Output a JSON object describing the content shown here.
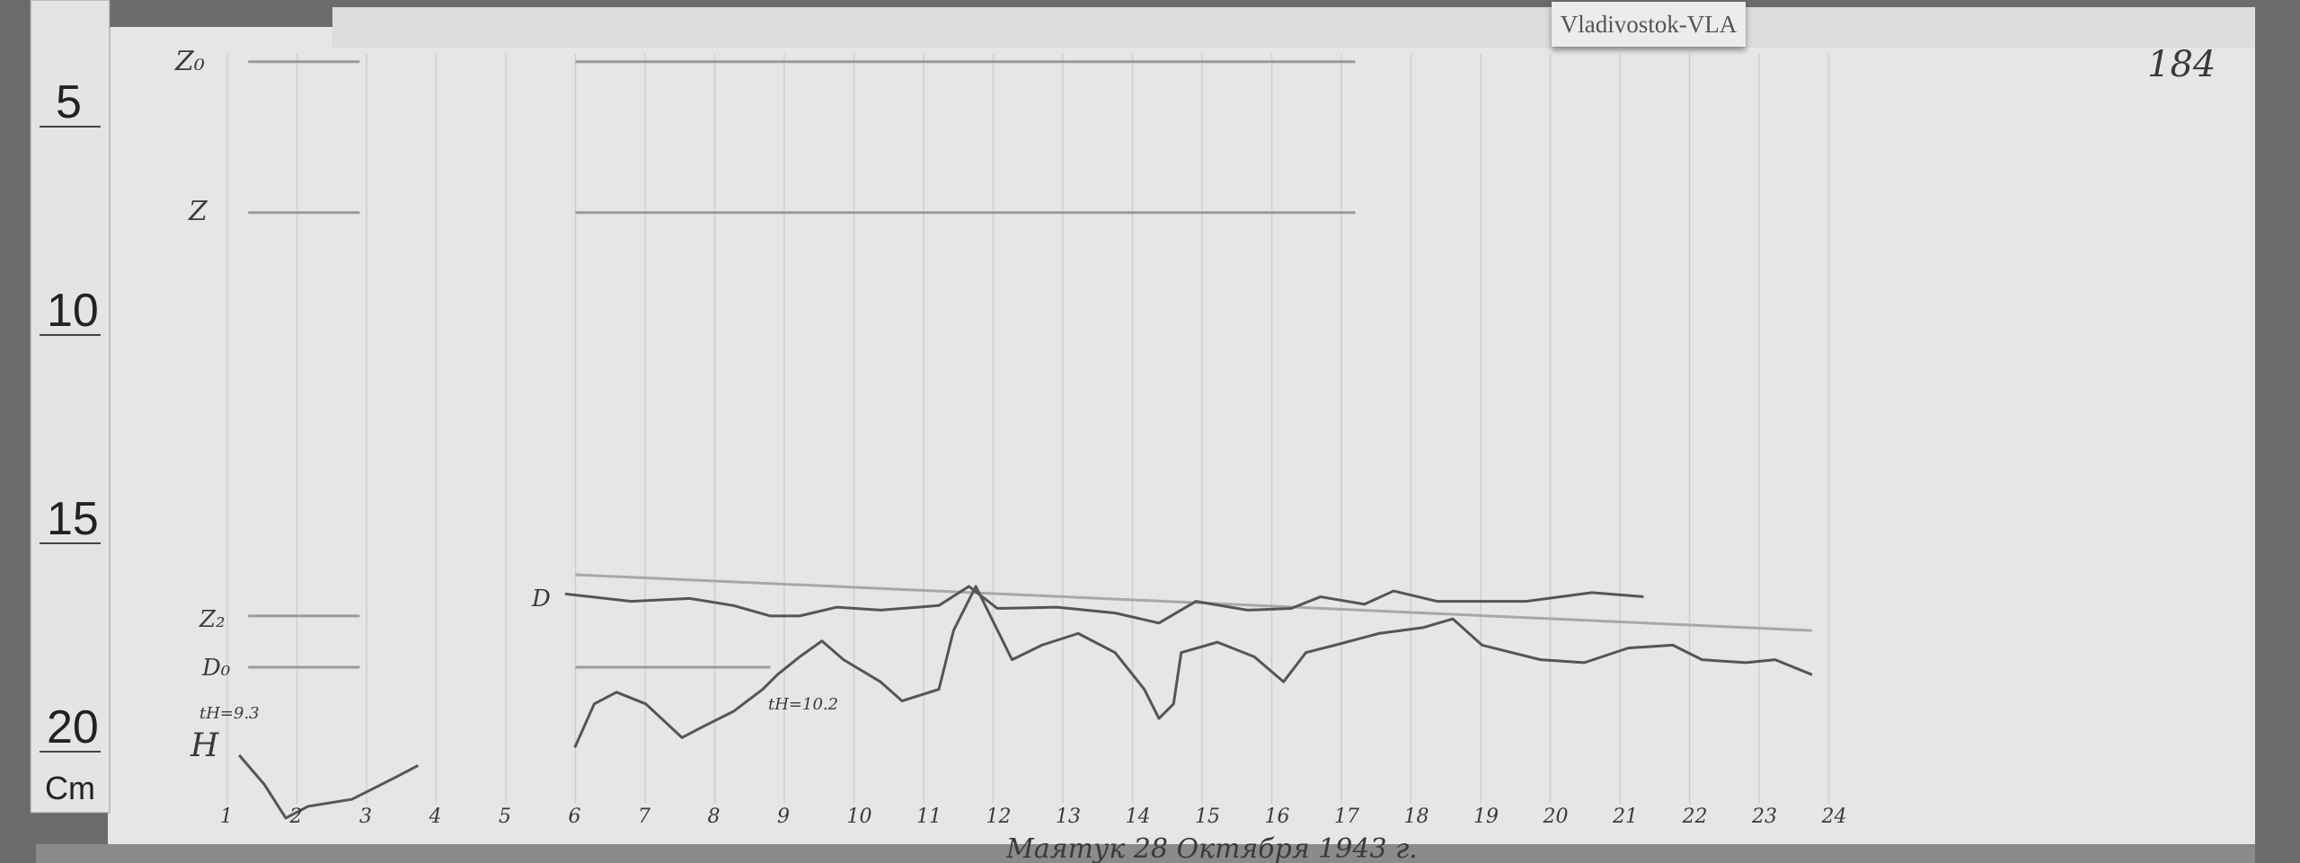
{
  "station_label": "Vladivostok-VLA",
  "sheet_number": "184",
  "ruler": {
    "ticks": [
      "5",
      "10",
      "15",
      "20"
    ],
    "unit": "Cm"
  },
  "signature_line": "Маятук 28 Октября 1943 г.",
  "trace_labels": {
    "z0": "Z₀",
    "z": "Z",
    "z2": "Z₂",
    "d0": "D₀",
    "th_left": "tH=9.3",
    "h": "H",
    "d": "D",
    "th_right": "tH=10.2"
  },
  "colors": {
    "paper": "#e8e8e8",
    "trace": "#555555",
    "baseline": "#9a9a9a"
  },
  "chart_data": {
    "type": "line",
    "x_unit": "hour",
    "y_unit": "cm (ruler)",
    "x_ticks": [
      "1",
      "2",
      "3",
      "4",
      "5",
      "6",
      "7",
      "8",
      "9",
      "10",
      "11",
      "12",
      "13",
      "14",
      "15",
      "16",
      "17",
      "18",
      "19",
      "20",
      "21",
      "22",
      "23",
      "24"
    ],
    "xlim": [
      1,
      24
    ],
    "ylim": [
      0,
      22.5
    ],
    "y_inverted": true,
    "grid": true,
    "series": [
      {
        "label": "D",
        "points": [
          [
            5.85,
            16.86
          ],
          [
            6.8,
            17.04
          ],
          [
            7.64,
            16.97
          ],
          [
            8.27,
            17.14
          ],
          [
            8.8,
            17.39
          ],
          [
            9.22,
            17.39
          ],
          [
            9.75,
            17.18
          ],
          [
            10.38,
            17.25
          ],
          [
            11.22,
            17.14
          ],
          [
            11.65,
            16.68
          ],
          [
            12.06,
            17.21
          ],
          [
            12.91,
            17.18
          ],
          [
            13.75,
            17.32
          ],
          [
            14.38,
            17.56
          ],
          [
            14.91,
            17.04
          ],
          [
            15.65,
            17.25
          ],
          [
            16.28,
            17.21
          ],
          [
            16.7,
            16.93
          ],
          [
            17.33,
            17.11
          ],
          [
            17.75,
            16.79
          ],
          [
            18.38,
            17.04
          ],
          [
            19.65,
            17.04
          ],
          [
            20.6,
            16.83
          ],
          [
            21.34,
            16.93
          ]
        ]
      },
      {
        "label": "H",
        "points": [
          [
            5.99,
            20.55
          ],
          [
            6.27,
            19.5
          ],
          [
            6.59,
            19.22
          ],
          [
            7.01,
            19.5
          ],
          [
            7.53,
            20.31
          ],
          [
            7.85,
            20.03
          ],
          [
            8.27,
            19.68
          ],
          [
            8.69,
            19.15
          ],
          [
            8.9,
            18.8
          ],
          [
            9.22,
            18.37
          ],
          [
            9.54,
            17.99
          ],
          [
            9.85,
            18.44
          ],
          [
            10.38,
            18.97
          ],
          [
            10.69,
            19.43
          ],
          [
            11.22,
            19.15
          ],
          [
            11.43,
            17.74
          ],
          [
            11.75,
            16.68
          ],
          [
            12.27,
            18.44
          ],
          [
            12.7,
            18.09
          ],
          [
            13.22,
            17.81
          ],
          [
            13.75,
            18.27
          ],
          [
            14.17,
            19.15
          ],
          [
            14.38,
            19.85
          ],
          [
            14.59,
            19.5
          ],
          [
            14.7,
            18.27
          ],
          [
            15.22,
            18.02
          ],
          [
            15.75,
            18.37
          ],
          [
            16.17,
            18.97
          ],
          [
            16.49,
            18.27
          ],
          [
            16.91,
            18.09
          ],
          [
            17.54,
            17.81
          ],
          [
            18.17,
            17.67
          ],
          [
            18.6,
            17.46
          ],
          [
            19.02,
            18.09
          ],
          [
            19.86,
            18.44
          ],
          [
            20.49,
            18.51
          ],
          [
            21.12,
            18.16
          ],
          [
            21.76,
            18.09
          ],
          [
            22.18,
            18.44
          ],
          [
            22.81,
            18.51
          ],
          [
            23.23,
            18.44
          ],
          [
            23.76,
            18.8
          ]
        ]
      },
      {
        "label": "H (early)",
        "points": [
          [
            1.17,
            20.73
          ],
          [
            1.53,
            21.43
          ],
          [
            1.84,
            22.24
          ],
          [
            2.16,
            21.96
          ],
          [
            2.79,
            21.79
          ],
          [
            3.42,
            21.26
          ],
          [
            3.74,
            20.98
          ]
        ]
      }
    ],
    "baselines": [
      {
        "label": "Z₀",
        "y": 4.09,
        "ranges": [
          [
            1.3,
            2.9
          ],
          [
            6.0,
            17.2
          ]
        ]
      },
      {
        "label": "Z",
        "y": 7.71,
        "ranges": [
          [
            1.3,
            2.9
          ],
          [
            6.0,
            17.2
          ]
        ]
      },
      {
        "label": "Z₂",
        "y": 17.39,
        "ranges": [
          [
            1.3,
            2.9
          ]
        ]
      },
      {
        "label": "D₀",
        "y": 18.62,
        "ranges": [
          [
            1.3,
            2.9
          ],
          [
            6.0,
            8.8
          ]
        ]
      }
    ],
    "sloped_line": [
      [
        6.0,
        16.4
      ],
      [
        23.76,
        17.74
      ]
    ]
  }
}
